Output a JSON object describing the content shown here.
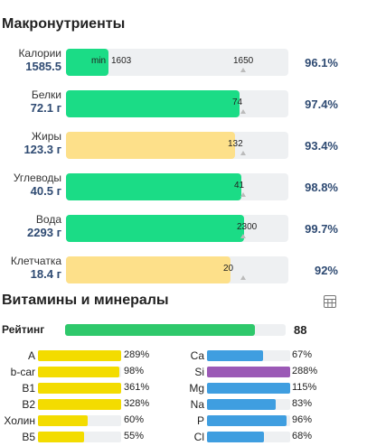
{
  "macros_title": "Макронутриенты",
  "macros": [
    {
      "name": "Калории",
      "value": "1585.5",
      "min_label": "min",
      "target": "1603",
      "max": "1650",
      "fill_pct": 0.19,
      "color": "green",
      "pct": "96.1%",
      "has_max": true
    },
    {
      "name": "Белки",
      "value": "72.1 г",
      "target": "74",
      "fill_pct": 0.78,
      "color": "green",
      "pct": "97.4%"
    },
    {
      "name": "Жиры",
      "value": "123.3 г",
      "target": "132",
      "fill_pct": 0.76,
      "color": "yellow",
      "pct": "93.4%"
    },
    {
      "name": "Углеводы",
      "value": "40.5 г",
      "target": "41",
      "fill_pct": 0.79,
      "color": "green",
      "pct": "98.8%"
    },
    {
      "name": "Вода",
      "value": "2293 г",
      "target": "2300",
      "fill_pct": 0.8,
      "color": "green",
      "pct": "99.7%"
    },
    {
      "name": "Клетчатка",
      "value": "18.4 г",
      "target": "20",
      "fill_pct": 0.74,
      "color": "yellow",
      "pct": "92%"
    }
  ],
  "vitamins_title": "Витамины и минералы",
  "table_icon": "table-grid-icon",
  "rating": {
    "label": "Рейтинг",
    "value": "88",
    "fill_pct": 0.88,
    "color": "#2ec86b"
  },
  "vitamins_left": [
    {
      "name": "A",
      "pct": "289%",
      "fill": 1.0,
      "color": "#f3dc00"
    },
    {
      "name": "b-car",
      "pct": "98%",
      "fill": 0.98,
      "color": "#f3dc00"
    },
    {
      "name": "B1",
      "pct": "361%",
      "fill": 1.0,
      "color": "#f3dc00"
    },
    {
      "name": "B2",
      "pct": "328%",
      "fill": 1.0,
      "color": "#f3dc00"
    },
    {
      "name": "Холин",
      "pct": "60%",
      "fill": 0.6,
      "color": "#f3dc00"
    },
    {
      "name": "B5",
      "pct": "55%",
      "fill": 0.55,
      "color": "#f3dc00"
    }
  ],
  "vitamins_right": [
    {
      "name": "Ca",
      "pct": "67%",
      "fill": 0.67,
      "color": "#3f9ee0"
    },
    {
      "name": "Si",
      "pct": "288%",
      "fill": 1.0,
      "color": "#9b59b6"
    },
    {
      "name": "Mg",
      "pct": "115%",
      "fill": 1.0,
      "color": "#3f9ee0"
    },
    {
      "name": "Na",
      "pct": "83%",
      "fill": 0.83,
      "color": "#3f9ee0"
    },
    {
      "name": "P",
      "pct": "96%",
      "fill": 0.96,
      "color": "#3f9ee0"
    },
    {
      "name": "Cl",
      "pct": "68%",
      "fill": 0.68,
      "color": "#3f9ee0"
    }
  ]
}
